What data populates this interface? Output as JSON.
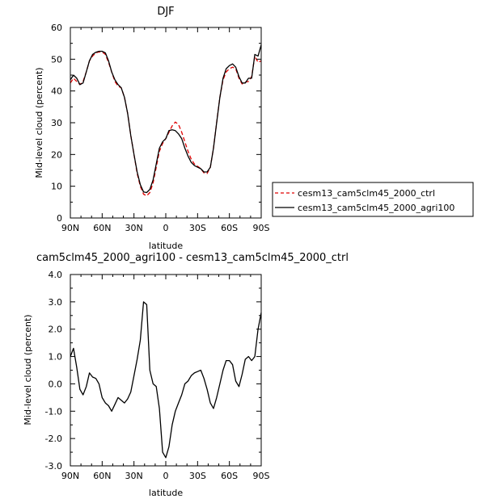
{
  "chart_data": [
    {
      "type": "line",
      "title": "DJF",
      "xlabel": "latitude",
      "ylabel": "Mid-level cloud (percent)",
      "x_ticks": [
        90,
        60,
        30,
        0,
        -30,
        -60,
        -90
      ],
      "x_tick_labels": [
        "90N",
        "60N",
        "30N",
        "0",
        "30S",
        "60S",
        "90S"
      ],
      "xlim": [
        90,
        -90
      ],
      "ylim": [
        0,
        60
      ],
      "y_ticks": [
        0,
        10,
        20,
        30,
        40,
        50,
        60
      ],
      "y_tick_labels": [
        "0",
        "10",
        "20",
        "30",
        "40",
        "50",
        "60"
      ],
      "legend_position": "right",
      "series": [
        {
          "name": "cesm13_cam5clm45_2000_ctrl",
          "color": "#e00000",
          "dash": "dashed",
          "x": [
            90,
            87,
            84,
            81,
            78,
            75,
            72,
            69,
            66,
            63,
            60,
            57,
            54,
            51,
            48,
            45,
            42,
            39,
            36,
            33,
            30,
            27,
            24,
            21,
            18,
            15,
            12,
            9,
            6,
            3,
            0,
            -3,
            -6,
            -9,
            -12,
            -15,
            -18,
            -21,
            -24,
            -27,
            -30,
            -33,
            -36,
            -39,
            -42,
            -45,
            -48,
            -51,
            -54,
            -57,
            -60,
            -63,
            -66,
            -69,
            -72,
            -75,
            -78,
            -81,
            -84,
            -87,
            -90
          ],
          "y": [
            42.5,
            44,
            43,
            42,
            43,
            46,
            49.5,
            51,
            52,
            52.3,
            52.3,
            51.5,
            49,
            46,
            43,
            41.5,
            41,
            38,
            33,
            26,
            20,
            14,
            10,
            7.5,
            7,
            8,
            11,
            16,
            21,
            23.5,
            25,
            27,
            29,
            30.2,
            29.5,
            27,
            24,
            21,
            18.5,
            17,
            16.3,
            15.5,
            14.2,
            14,
            16,
            22,
            30,
            38,
            43.5,
            46,
            47,
            47.5,
            47,
            44,
            42.2,
            42.8,
            43,
            44.5,
            51,
            49,
            49.5
          ]
        },
        {
          "name": "cesm13_cam5clm45_2000_agri100",
          "color": "#000000",
          "dash": "solid",
          "x": [
            90,
            87,
            84,
            81,
            78,
            75,
            72,
            69,
            66,
            63,
            60,
            57,
            54,
            51,
            48,
            45,
            42,
            39,
            36,
            33,
            30,
            27,
            24,
            21,
            18,
            15,
            12,
            9,
            6,
            3,
            0,
            -3,
            -6,
            -9,
            -12,
            -15,
            -18,
            -21,
            -24,
            -27,
            -30,
            -33,
            -36,
            -39,
            -42,
            -45,
            -48,
            -51,
            -54,
            -57,
            -60,
            -63,
            -66,
            -69,
            -72,
            -75,
            -78,
            -81,
            -84,
            -87,
            -90
          ],
          "y": [
            43.5,
            45,
            44,
            42,
            42.5,
            46,
            49.5,
            51.5,
            52.2,
            52.5,
            52.5,
            52,
            49.5,
            46,
            43.5,
            42,
            41,
            38,
            33,
            26,
            20,
            14.5,
            10.5,
            8.2,
            8,
            9,
            12,
            17,
            22,
            24,
            25,
            27.5,
            27.8,
            27.5,
            26.5,
            25,
            22,
            19.5,
            17.5,
            16.5,
            16,
            15.5,
            14.5,
            14.5,
            16,
            22,
            30,
            38,
            44,
            47,
            48,
            48.5,
            47.5,
            44.5,
            42.5,
            42.5,
            44,
            44,
            51.5,
            51,
            54.5
          ]
        }
      ]
    },
    {
      "type": "line",
      "title": "cam5clm45_2000_agri100 - cesm13_cam5clm45_2000_ctrl",
      "xlabel": "latitude",
      "ylabel": "Mid-level cloud (percent)",
      "x_ticks": [
        90,
        60,
        30,
        0,
        -30,
        -60,
        -90
      ],
      "x_tick_labels": [
        "90N",
        "60N",
        "30N",
        "0",
        "30S",
        "60S",
        "90S"
      ],
      "xlim": [
        90,
        -90
      ],
      "ylim": [
        -3,
        4
      ],
      "y_ticks": [
        -3,
        -2,
        -1,
        0,
        1,
        2,
        3,
        4
      ],
      "y_tick_labels": [
        "-3.0",
        "-2.0",
        "-1.0",
        "0.0",
        "1.0",
        "2.0",
        "3.0",
        "4.0"
      ],
      "series": [
        {
          "color": "#000000",
          "dash": "solid",
          "x": [
            90,
            87,
            84,
            81,
            78,
            75,
            72,
            69,
            66,
            63,
            60,
            57,
            54,
            51,
            48,
            45,
            42,
            39,
            36,
            33,
            30,
            27,
            24,
            21,
            18,
            15,
            12,
            9,
            6,
            3,
            0,
            -3,
            -6,
            -9,
            -12,
            -15,
            -18,
            -21,
            -24,
            -27,
            -30,
            -33,
            -36,
            -39,
            -42,
            -45,
            -48,
            -51,
            -54,
            -57,
            -60,
            -63,
            -66,
            -69,
            -72,
            -75,
            -78,
            -81,
            -84,
            -87,
            -90
          ],
          "y": [
            1.0,
            1.3,
            0.6,
            -0.2,
            -0.4,
            -0.1,
            0.4,
            0.25,
            0.2,
            0.0,
            -0.5,
            -0.7,
            -0.8,
            -1.0,
            -0.75,
            -0.5,
            -0.6,
            -0.7,
            -0.55,
            -0.3,
            0.3,
            0.9,
            1.6,
            3.0,
            2.9,
            0.5,
            0.0,
            -0.1,
            -0.9,
            -2.5,
            -2.7,
            -2.3,
            -1.5,
            -1.0,
            -0.7,
            -0.4,
            0.0,
            0.1,
            0.3,
            0.4,
            0.45,
            0.5,
            0.2,
            -0.2,
            -0.7,
            -0.9,
            -0.5,
            0.0,
            0.5,
            0.85,
            0.85,
            0.7,
            0.1,
            -0.1,
            0.35,
            0.9,
            1.0,
            0.85,
            1.0,
            2.0,
            2.6
          ]
        }
      ]
    }
  ]
}
